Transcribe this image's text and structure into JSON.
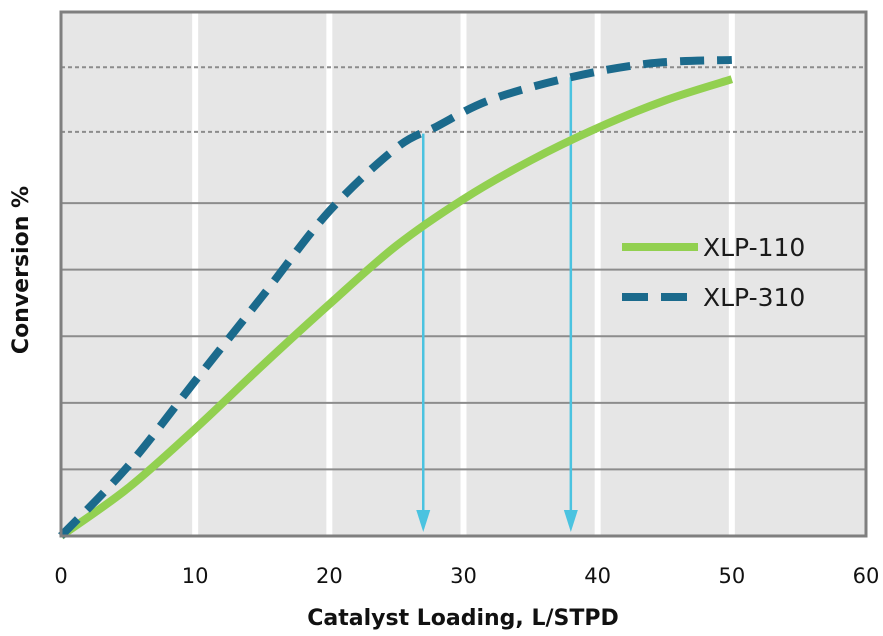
{
  "chart_data": {
    "type": "line",
    "xlabel": "Catalyst Loading, L/STPD",
    "ylabel": "Conversion %",
    "xlim": [
      0,
      60
    ],
    "x_ticks": [
      "0",
      "10",
      "20",
      "30",
      "40",
      "50",
      "60"
    ],
    "y_tick_labels_shown": false,
    "grid": true,
    "legend_position": "right-middle",
    "series": [
      {
        "name": "XLP-110",
        "style": "solid",
        "color": "#92d050",
        "points": [
          [
            0,
            0
          ],
          [
            5,
            7.2
          ],
          [
            10,
            16.1
          ],
          [
            15,
            25.6
          ],
          [
            20,
            34.8
          ],
          [
            25,
            43.6
          ],
          [
            30,
            50.6
          ],
          [
            35,
            56.4
          ],
          [
            40,
            61.3
          ],
          [
            45,
            65.4
          ],
          [
            50,
            68.6
          ]
        ]
      },
      {
        "name": "XLP-310",
        "style": "dashed",
        "color": "#1b6a8c",
        "points": [
          [
            0,
            0
          ],
          [
            5,
            10.5
          ],
          [
            10,
            23.3
          ],
          [
            15,
            36.0
          ],
          [
            20,
            48.8
          ],
          [
            25,
            58.3
          ],
          [
            28,
            61.5
          ],
          [
            32,
            65.5
          ],
          [
            38,
            68.9
          ],
          [
            44,
            71.0
          ],
          [
            50,
            71.5
          ]
        ]
      }
    ],
    "reference_lines": {
      "y_dashed": [
        60.7,
        70.4
      ],
      "down_arrows_x": [
        27,
        38
      ]
    },
    "y_gridlines": [
      10,
      20,
      30,
      40,
      50
    ]
  },
  "colors": {
    "plot_background": "#e6e6e6",
    "plot_border": "#7f7f7f",
    "gridline": "#ffffff",
    "horizontal_line": "#8c8c8c",
    "arrow": "#4bc3e0"
  }
}
